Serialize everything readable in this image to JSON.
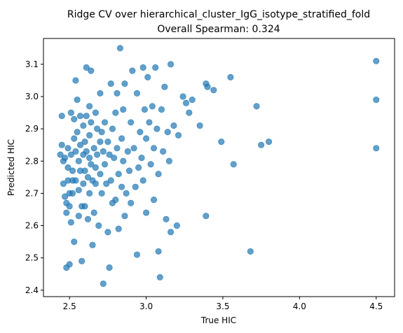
{
  "chart_data": {
    "type": "scatter",
    "title": "Ridge CV over hierarchical_cluster_IgG_isotype_stratified_fold",
    "subtitle": "Overall Spearman: 0.324",
    "xlabel": "True HIC",
    "ylabel": "Predicted HIC",
    "xlim": [
      2.33,
      4.62
    ],
    "ylim": [
      2.38,
      3.18
    ],
    "xticks": [
      "2.5",
      "3.0",
      "3.5",
      "4.0",
      "4.5"
    ],
    "yticks": [
      "2.4",
      "2.5",
      "2.6",
      "2.7",
      "2.8",
      "2.9",
      "3.0",
      "3.1"
    ],
    "grid": false,
    "marker_color": "#1f77b4",
    "marker_alpha": 0.7,
    "points": [
      [
        2.44,
        2.82
      ],
      [
        2.45,
        2.94
      ],
      [
        2.45,
        2.85
      ],
      [
        2.46,
        2.8
      ],
      [
        2.46,
        2.73
      ],
      [
        2.47,
        2.81
      ],
      [
        2.47,
        2.69
      ],
      [
        2.48,
        2.67
      ],
      [
        2.48,
        2.64
      ],
      [
        2.48,
        2.47
      ],
      [
        2.49,
        2.78
      ],
      [
        2.49,
        2.74
      ],
      [
        2.49,
        2.84
      ],
      [
        2.5,
        2.7
      ],
      [
        2.5,
        2.66
      ],
      [
        2.5,
        2.48
      ],
      [
        2.51,
        2.95
      ],
      [
        2.51,
        2.82
      ],
      [
        2.51,
        2.61
      ],
      [
        2.52,
        2.77
      ],
      [
        2.52,
        2.74
      ],
      [
        2.52,
        2.7
      ],
      [
        2.53,
        2.87
      ],
      [
        2.53,
        2.55
      ],
      [
        2.53,
        2.93
      ],
      [
        2.54,
        3.05
      ],
      [
        2.54,
        2.83
      ],
      [
        2.54,
        2.74
      ],
      [
        2.55,
        2.89
      ],
      [
        2.55,
        2.99
      ],
      [
        2.56,
        2.8
      ],
      [
        2.56,
        2.71
      ],
      [
        2.56,
        2.63
      ],
      [
        2.57,
        2.94
      ],
      [
        2.57,
        2.85
      ],
      [
        2.57,
        2.77
      ],
      [
        2.58,
        2.66
      ],
      [
        2.58,
        2.49
      ],
      [
        2.59,
        2.91
      ],
      [
        2.59,
        2.82
      ],
      [
        2.59,
        2.73
      ],
      [
        2.6,
        2.86
      ],
      [
        2.6,
        2.77
      ],
      [
        2.6,
        2.66
      ],
      [
        2.61,
        3.09
      ],
      [
        2.61,
        2.94
      ],
      [
        2.61,
        2.83
      ],
      [
        2.62,
        2.75
      ],
      [
        2.62,
        2.62
      ],
      [
        2.63,
        2.97
      ],
      [
        2.63,
        2.88
      ],
      [
        2.63,
        2.81
      ],
      [
        2.63,
        2.7
      ],
      [
        2.64,
        3.08
      ],
      [
        2.64,
        2.92
      ],
      [
        2.64,
        2.79
      ],
      [
        2.65,
        2.74
      ],
      [
        2.65,
        2.54
      ],
      [
        2.66,
        2.84
      ],
      [
        2.66,
        2.64
      ],
      [
        2.67,
        2.95
      ],
      [
        2.67,
        2.78
      ],
      [
        2.67,
        2.73
      ],
      [
        2.68,
        2.9
      ],
      [
        2.68,
        2.82
      ],
      [
        2.69,
        2.6
      ],
      [
        2.7,
        3.01
      ],
      [
        2.7,
        2.86
      ],
      [
        2.7,
        2.76
      ],
      [
        2.71,
        2.89
      ],
      [
        2.71,
        2.7
      ],
      [
        2.72,
        2.83
      ],
      [
        2.72,
        2.42
      ],
      [
        2.73,
        2.79
      ],
      [
        2.73,
        2.92
      ],
      [
        2.74,
        2.73
      ],
      [
        2.75,
        2.86
      ],
      [
        2.75,
        2.58
      ],
      [
        2.76,
        2.47
      ],
      [
        2.76,
        2.82
      ],
      [
        2.77,
        3.04
      ],
      [
        2.77,
        2.74
      ],
      [
        2.78,
        2.9
      ],
      [
        2.78,
        2.67
      ],
      [
        2.79,
        2.81
      ],
      [
        2.8,
        2.95
      ],
      [
        2.8,
        2.68
      ],
      [
        2.81,
        2.84
      ],
      [
        2.81,
        3.01
      ],
      [
        2.82,
        2.76
      ],
      [
        2.82,
        2.59
      ],
      [
        2.83,
        3.15
      ],
      [
        2.84,
        2.87
      ],
      [
        2.84,
        2.72
      ],
      [
        2.85,
        2.96
      ],
      [
        2.85,
        2.8
      ],
      [
        2.86,
        3.04
      ],
      [
        2.86,
        2.63
      ],
      [
        2.87,
        2.7
      ],
      [
        2.88,
        2.83
      ],
      [
        2.89,
        2.77
      ],
      [
        2.9,
        2.92
      ],
      [
        2.9,
        2.67
      ],
      [
        2.91,
        3.08
      ],
      [
        2.92,
        2.84
      ],
      [
        2.93,
        2.72
      ],
      [
        2.94,
        3.01
      ],
      [
        2.94,
        2.51
      ],
      [
        2.95,
        2.78
      ],
      [
        2.96,
        2.89
      ],
      [
        2.97,
        2.81
      ],
      [
        2.98,
        3.09
      ],
      [
        2.98,
        2.74
      ],
      [
        2.99,
        2.96
      ],
      [
        3.0,
        2.87
      ],
      [
        3.0,
        2.64
      ],
      [
        3.01,
        3.06
      ],
      [
        3.02,
        2.92
      ],
      [
        3.03,
        2.79
      ],
      [
        3.04,
        2.97
      ],
      [
        3.05,
        2.84
      ],
      [
        3.05,
        2.68
      ],
      [
        3.06,
        3.09
      ],
      [
        3.07,
        2.9
      ],
      [
        3.08,
        2.76
      ],
      [
        3.08,
        2.52
      ],
      [
        3.09,
        2.44
      ],
      [
        3.1,
        2.96
      ],
      [
        3.11,
        2.83
      ],
      [
        3.12,
        3.03
      ],
      [
        3.13,
        2.62
      ],
      [
        3.14,
        2.89
      ],
      [
        3.15,
        2.8
      ],
      [
        3.16,
        2.58
      ],
      [
        3.16,
        3.1
      ],
      [
        3.18,
        2.91
      ],
      [
        3.2,
        2.6
      ],
      [
        3.21,
        2.88
      ],
      [
        3.24,
        3.0
      ],
      [
        3.26,
        2.98
      ],
      [
        3.28,
        2.95
      ],
      [
        3.3,
        2.99
      ],
      [
        3.35,
        2.91
      ],
      [
        3.39,
        3.04
      ],
      [
        3.39,
        2.63
      ],
      [
        3.4,
        3.03
      ],
      [
        3.44,
        3.02
      ],
      [
        3.55,
        3.06
      ],
      [
        3.57,
        2.79
      ],
      [
        3.49,
        2.86
      ],
      [
        3.68,
        2.52
      ],
      [
        3.72,
        2.97
      ],
      [
        3.75,
        2.85
      ],
      [
        3.8,
        2.86
      ],
      [
        4.5,
        3.11
      ],
      [
        4.5,
        2.99
      ],
      [
        4.5,
        2.84
      ]
    ]
  }
}
